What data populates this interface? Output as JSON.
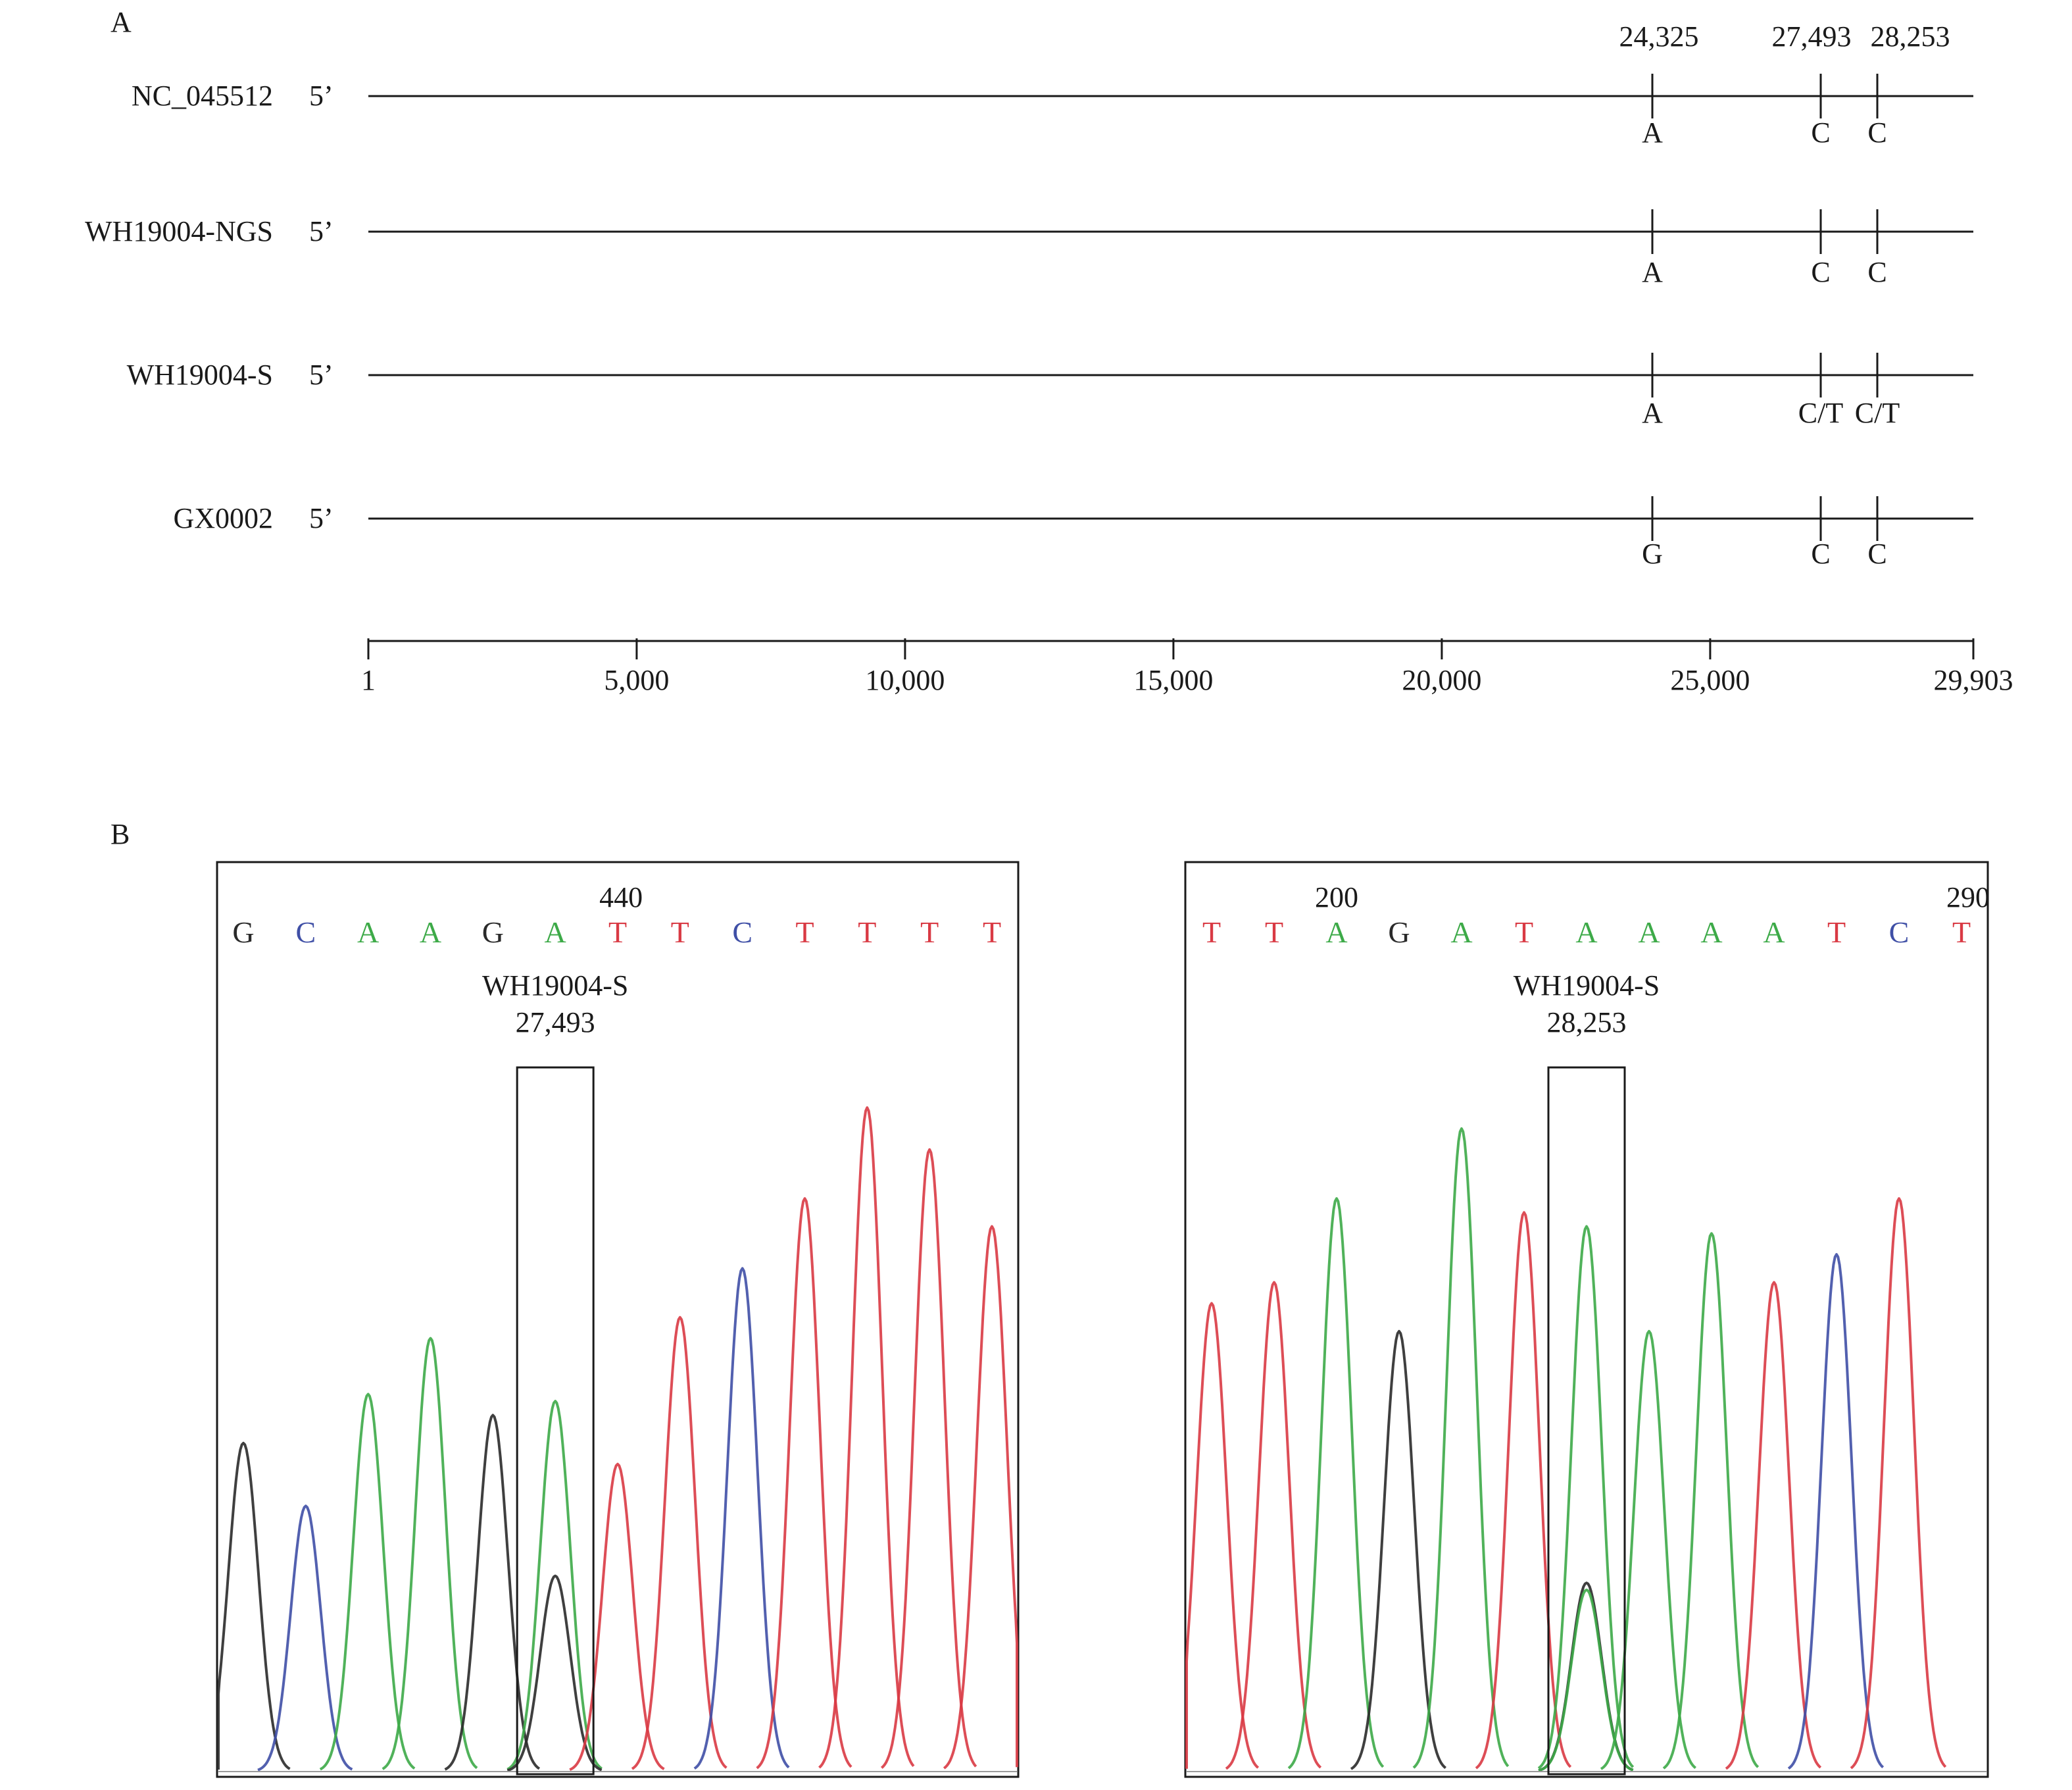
{
  "panel_a": {
    "label": "A",
    "five_prime": "5’",
    "sequences": [
      {
        "name": "NC_045512",
        "bases": [
          "A",
          "C",
          "C"
        ]
      },
      {
        "name": "WH19004-NGS",
        "bases": [
          "A",
          "C",
          "C"
        ]
      },
      {
        "name": "WH19004-S",
        "bases": [
          "A",
          "C/T",
          "C/T"
        ]
      },
      {
        "name": "GX0002",
        "bases": [
          "G",
          "C",
          "C"
        ]
      }
    ],
    "sites": [
      {
        "label": "24,325",
        "pos": 24325
      },
      {
        "label": "27,493",
        "pos": 27493
      },
      {
        "label": "28,253",
        "pos": 28253
      }
    ],
    "axis": {
      "min": 1,
      "max": 29903,
      "ticks": [
        {
          "label": "1",
          "value": 1
        },
        {
          "label": "5,000",
          "value": 5000
        },
        {
          "label": "10,000",
          "value": 10000
        },
        {
          "label": "15,000",
          "value": 15000
        },
        {
          "label": "20,000",
          "value": 20000
        },
        {
          "label": "25,000",
          "value": 25000
        },
        {
          "label": "29,903",
          "value": 29903
        }
      ]
    }
  },
  "panel_b": {
    "label": "B",
    "colors": {
      "A": "#3daa48",
      "C": "#3f4fa6",
      "G": "#2a2a2a",
      "T": "#d93a44"
    },
    "chromatograms": [
      {
        "bases": [
          "G",
          "C",
          "A",
          "A",
          "G",
          "A",
          "T",
          "T",
          "C",
          "T",
          "T",
          "T",
          "T"
        ],
        "position_label": "440",
        "position_label_base_index": 5,
        "sample": "WH19004-S",
        "site": "27,493",
        "highlight_index": 5,
        "peaks": [
          {
            "base": "G",
            "height": 0.47
          },
          {
            "base": "C",
            "height": 0.38
          },
          {
            "base": "A",
            "height": 0.54
          },
          {
            "base": "A",
            "height": 0.62
          },
          {
            "base": "G",
            "height": 0.51
          },
          {
            "base": "A",
            "height": 0.53
          },
          {
            "base": "G",
            "height": 0.28,
            "shift": 0
          },
          {
            "base": "T",
            "height": 0.44
          },
          {
            "base": "T",
            "height": 0.65
          },
          {
            "base": "C",
            "height": 0.72
          },
          {
            "base": "T",
            "height": 0.82
          },
          {
            "base": "T",
            "height": 0.95
          },
          {
            "base": "T",
            "height": 0.89
          },
          {
            "base": "T",
            "height": 0.78
          }
        ]
      },
      {
        "bases": [
          "T",
          "T",
          "A",
          "G",
          "A",
          "T",
          "A",
          "A",
          "A",
          "A",
          "T",
          "C",
          "T"
        ],
        "position_label": "200",
        "position_label_base_index": 2,
        "end_label": "290",
        "sample": "WH19004-S",
        "site": "28,253",
        "highlight_index": 6,
        "peaks": [
          {
            "base": "T",
            "height": 0.67
          },
          {
            "base": "T",
            "height": 0.7
          },
          {
            "base": "A",
            "height": 0.82
          },
          {
            "base": "G",
            "height": 0.63
          },
          {
            "base": "A",
            "height": 0.92
          },
          {
            "base": "T",
            "height": 0.8
          },
          {
            "base": "G",
            "height": 0.27,
            "shift": 0
          },
          {
            "base": "A",
            "height": 0.26,
            "shift": 0
          },
          {
            "base": "A",
            "height": 0.78
          },
          {
            "base": "A",
            "height": 0.63
          },
          {
            "base": "A",
            "height": 0.77
          },
          {
            "base": "T",
            "height": 0.7
          },
          {
            "base": "C",
            "height": 0.74
          },
          {
            "base": "T",
            "height": 0.82
          }
        ]
      }
    ]
  }
}
